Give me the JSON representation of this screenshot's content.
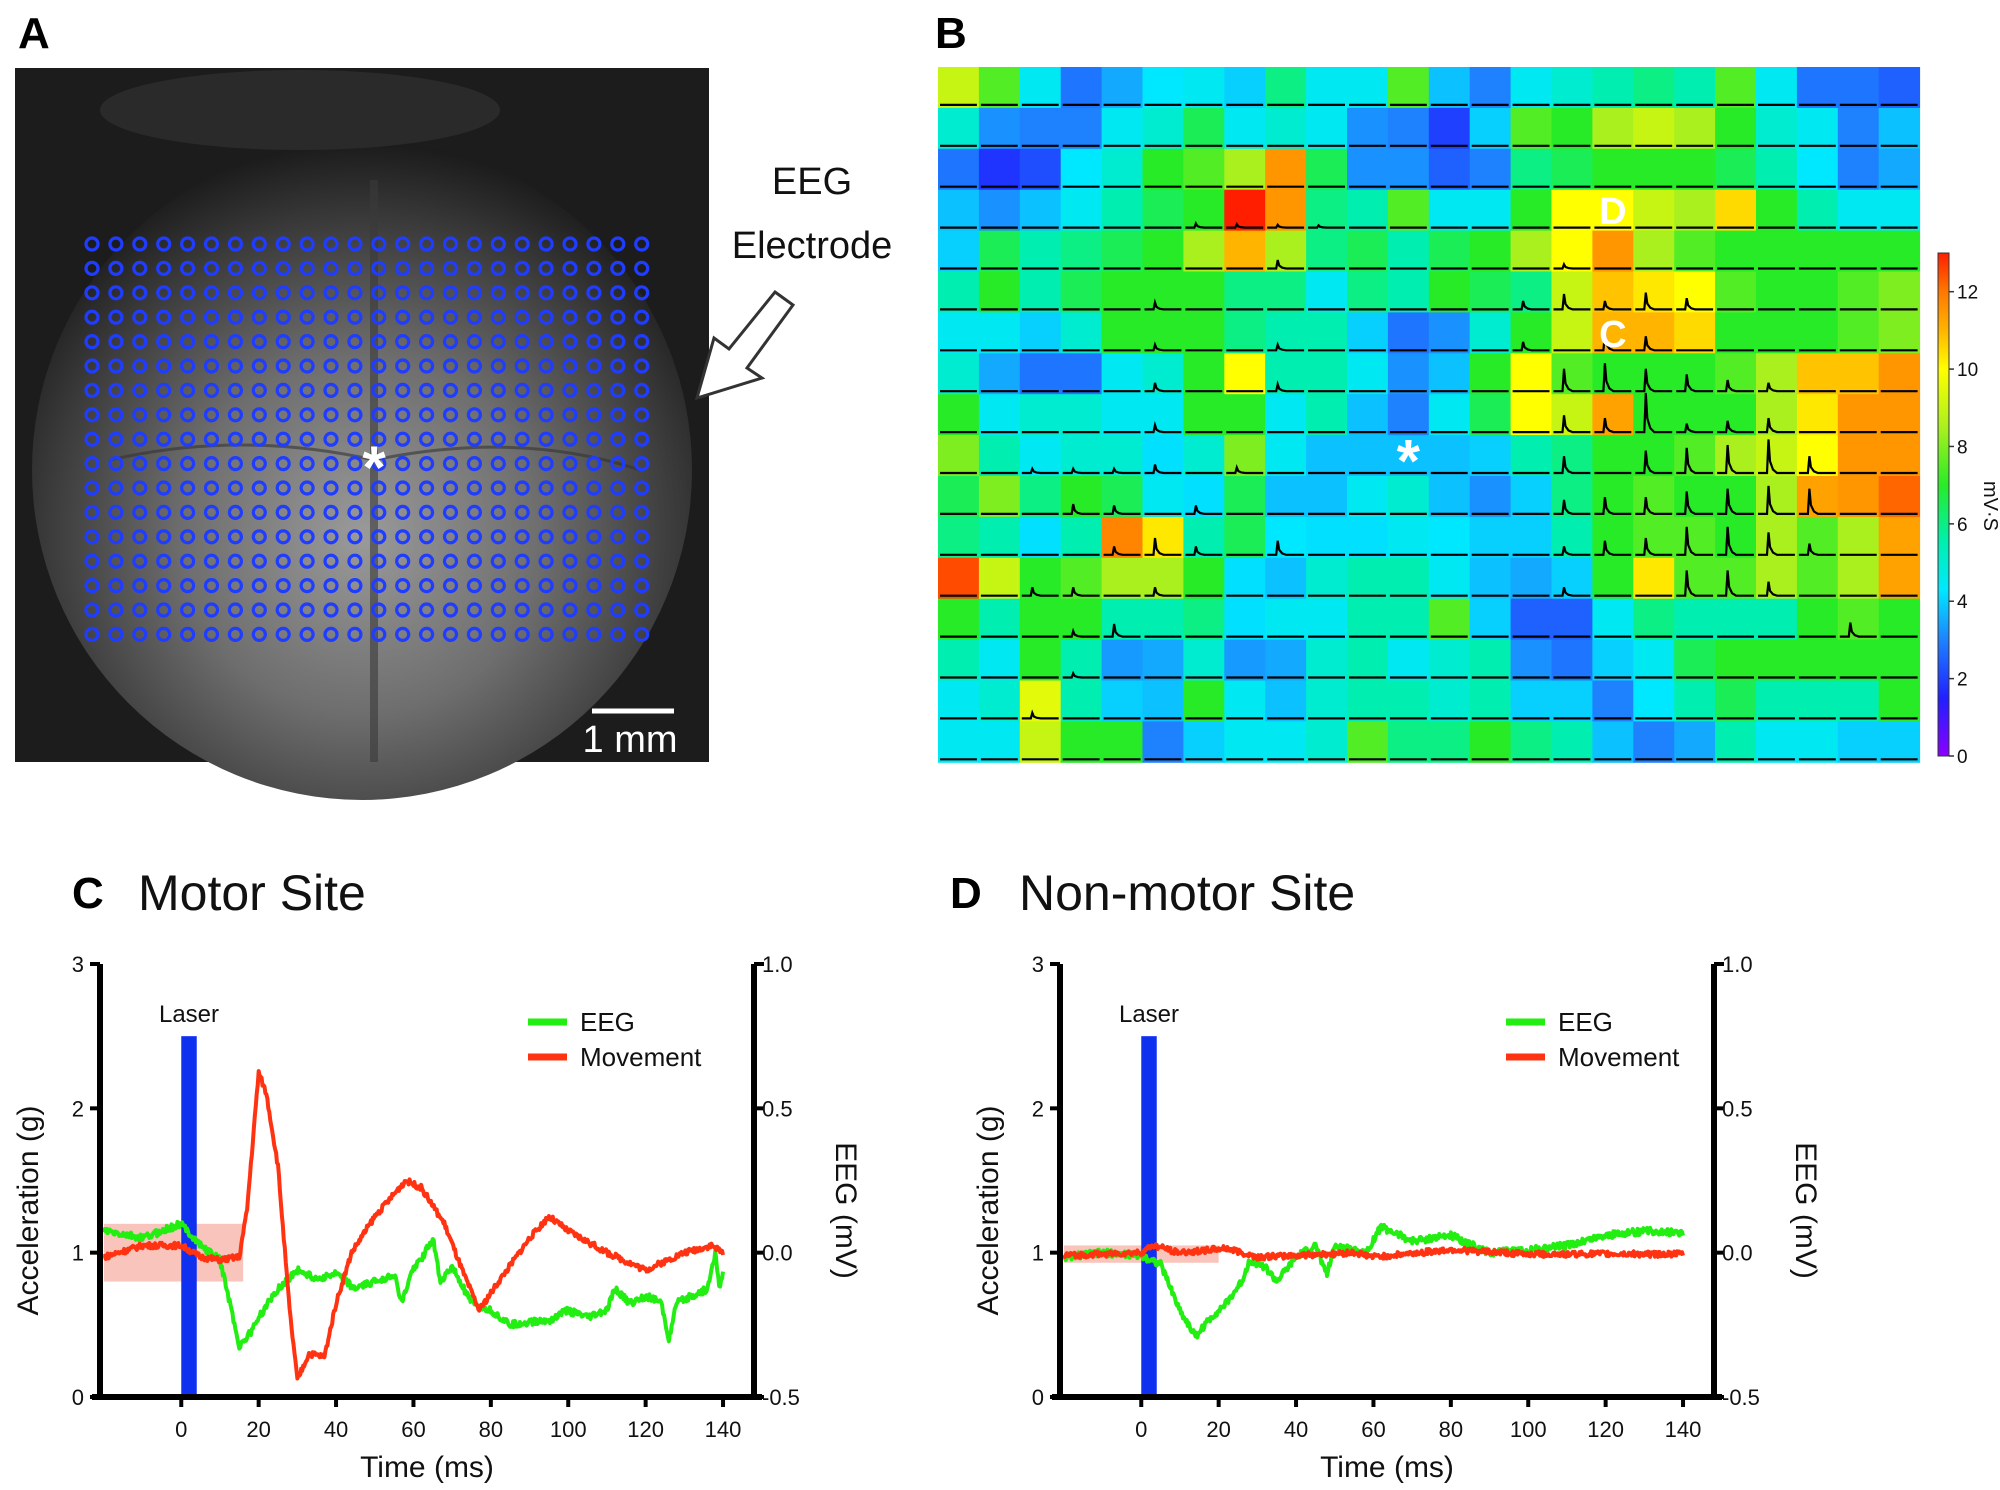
{
  "panels": {
    "a": {
      "letter": "A",
      "electrode_label_line1": "EEG",
      "electrode_label_line2": "Electrode",
      "scale_bar": "1 mm",
      "marker": "*",
      "grid_rows": 17,
      "grid_cols": 24,
      "dot_color": "#1f3cff"
    },
    "b": {
      "letter": "B",
      "marker": "*",
      "site_d": "D",
      "site_c": "C"
    },
    "c": {
      "letter": "C",
      "title": "Motor Site"
    },
    "d": {
      "letter": "D",
      "title": "Non-motor Site"
    }
  },
  "chart_data": [
    {
      "id": "B",
      "type": "heatmap",
      "colorbar": {
        "label": "mV·S",
        "range": [
          0,
          13
        ],
        "ticks": [
          "0",
          "2",
          "4",
          "6",
          "8",
          "10",
          "12"
        ]
      },
      "annotations": [
        {
          "text": "D",
          "row": 4,
          "col": 17
        },
        {
          "text": "C",
          "row": 7,
          "col": 17
        },
        {
          "text": "*",
          "row": 10,
          "col": 12
        }
      ],
      "values": [
        [
          9,
          7.5,
          4.5,
          2.8,
          3.5,
          4.3,
          4.5,
          4,
          6,
          4.5,
          4.5,
          7.5,
          3.8,
          3,
          4.5,
          5,
          5.5,
          6,
          5.5,
          7.5,
          4.5,
          2.8,
          2.8,
          2.5
        ],
        [
          5,
          3.2,
          3,
          3,
          4.5,
          5,
          6.5,
          4.5,
          5,
          4.5,
          3.2,
          3,
          2,
          4,
          7.5,
          7,
          8.5,
          9,
          8.5,
          7,
          5,
          4.5,
          3,
          3.8
        ],
        [
          2.8,
          1.8,
          2.2,
          4.3,
          5,
          7,
          7.5,
          8.5,
          11.5,
          6.5,
          3.2,
          3.2,
          2.5,
          3,
          6,
          6.5,
          7,
          7,
          7,
          6.5,
          5.5,
          4.3,
          3,
          3.5
        ],
        [
          3.8,
          3.2,
          3.8,
          4.5,
          5.5,
          6.5,
          7,
          13,
          11.5,
          6,
          5.5,
          7.5,
          4.5,
          4.5,
          7,
          10,
          10,
          9,
          8.5,
          10.5,
          7,
          5.5,
          4.5,
          4.5
        ],
        [
          4,
          6.5,
          5.5,
          6,
          6.5,
          7,
          8.5,
          11,
          8.5,
          6,
          6.5,
          5.5,
          6.5,
          7,
          8.5,
          10,
          11.5,
          8.5,
          7.5,
          7,
          7,
          7,
          7,
          7
        ],
        [
          5.5,
          7,
          5.5,
          6.5,
          7,
          7,
          7,
          6,
          6,
          4.5,
          6,
          5.5,
          7,
          6.5,
          6,
          9,
          10.8,
          10.3,
          10,
          7.5,
          7,
          7,
          7.5,
          8
        ],
        [
          4.5,
          4.5,
          4,
          5,
          7,
          7,
          7,
          6,
          5.5,
          5.5,
          4,
          2.8,
          3.2,
          5,
          7,
          9,
          11,
          11,
          10.5,
          7,
          7,
          7,
          7.5,
          8
        ],
        [
          5,
          3.5,
          2.8,
          2.8,
          4.5,
          5,
          7,
          10,
          5.5,
          5.5,
          4.5,
          3.2,
          3.8,
          7,
          10,
          7.5,
          7,
          7,
          7,
          7.5,
          8.5,
          10.8,
          10.8,
          11.5
        ],
        [
          7,
          4.5,
          5,
          5,
          4.5,
          4.5,
          7,
          7,
          4.5,
          5.5,
          3.8,
          3,
          4.5,
          6.5,
          10,
          9,
          11.3,
          7,
          7,
          7,
          8.5,
          10.3,
          11.5,
          11.5
        ],
        [
          8,
          5.5,
          4.5,
          5,
          5,
          4.2,
          5,
          8,
          4.5,
          3.8,
          3.8,
          3.8,
          3.8,
          4,
          5.5,
          6,
          7,
          7,
          7.5,
          8.5,
          9,
          10,
          11.5,
          11.5
        ],
        [
          6.5,
          8,
          6,
          7,
          6.5,
          4.5,
          4.2,
          6.5,
          3.8,
          3.8,
          4.5,
          5,
          3.8,
          3.2,
          4,
          6,
          7,
          7.5,
          7,
          7,
          8.5,
          11.3,
          11.5,
          12.2
        ],
        [
          6,
          5.5,
          4.2,
          5.5,
          11.8,
          10.3,
          5.5,
          6.5,
          4.3,
          4.2,
          4.2,
          4.5,
          4.3,
          4,
          4,
          5.5,
          7,
          7.5,
          7.5,
          7,
          8.5,
          7.5,
          8.5,
          11.3
        ],
        [
          12.5,
          9,
          7,
          7.5,
          8.5,
          8.5,
          7,
          4.2,
          3.8,
          5,
          5.5,
          5.5,
          4.5,
          3.8,
          3.5,
          4,
          7,
          10.3,
          7.5,
          7.5,
          8.5,
          7.5,
          8.5,
          11.3
        ],
        [
          7,
          5.5,
          7,
          7,
          5.5,
          5.5,
          6,
          4.2,
          4.5,
          4.5,
          5.5,
          5.5,
          7.5,
          4,
          2.5,
          2.5,
          4.5,
          6,
          5.5,
          5.5,
          5.5,
          7,
          7.5,
          7
        ],
        [
          5.5,
          4.5,
          7,
          5.5,
          3.3,
          3.5,
          5,
          3.3,
          3.5,
          5,
          5.5,
          4.5,
          5,
          5.5,
          3.2,
          2.8,
          4,
          4.5,
          6.5,
          7,
          7,
          7,
          7,
          7
        ],
        [
          4.5,
          5,
          9.5,
          5.5,
          4,
          3.8,
          7,
          4.5,
          3.8,
          5,
          5.5,
          5.5,
          5,
          5.5,
          4,
          4,
          3,
          4.3,
          5.5,
          6.5,
          5.5,
          5.5,
          5.5,
          7
        ],
        [
          4.5,
          4.5,
          9,
          7,
          7,
          3,
          4,
          4.5,
          4.5,
          5,
          7.5,
          6,
          6,
          7,
          6,
          5.5,
          3.8,
          3,
          3.5,
          5.5,
          4.5,
          4.5,
          4,
          4
        ]
      ],
      "trace_spikes": [
        [
          4,
          7,
          0.15
        ],
        [
          4,
          8,
          0.12
        ],
        [
          4,
          9,
          0.1
        ],
        [
          4,
          10,
          0.08
        ],
        [
          5,
          9,
          0.3
        ],
        [
          5,
          16,
          0.15
        ],
        [
          6,
          6,
          0.25
        ],
        [
          6,
          15,
          0.3
        ],
        [
          6,
          16,
          0.55
        ],
        [
          6,
          17,
          0.3
        ],
        [
          6,
          18,
          0.6
        ],
        [
          6,
          19,
          0.4
        ],
        [
          7,
          6,
          0.2
        ],
        [
          7,
          9,
          0.2
        ],
        [
          7,
          15,
          0.3
        ],
        [
          7,
          17,
          0.6
        ],
        [
          7,
          18,
          0.5
        ],
        [
          8,
          6,
          0.3
        ],
        [
          8,
          9,
          0.25
        ],
        [
          8,
          16,
          0.8
        ],
        [
          8,
          17,
          1.0
        ],
        [
          8,
          18,
          0.8
        ],
        [
          8,
          19,
          0.6
        ],
        [
          8,
          20,
          0.4
        ],
        [
          8,
          21,
          0.3
        ],
        [
          9,
          6,
          0.25
        ],
        [
          9,
          16,
          0.6
        ],
        [
          9,
          17,
          0.5
        ],
        [
          9,
          18,
          1.4
        ],
        [
          9,
          19,
          0.3
        ],
        [
          9,
          20,
          0.4
        ],
        [
          9,
          21,
          0.5
        ],
        [
          10,
          3,
          0.15
        ],
        [
          10,
          4,
          0.15
        ],
        [
          10,
          5,
          0.15
        ],
        [
          10,
          6,
          0.3
        ],
        [
          10,
          8,
          0.2
        ],
        [
          10,
          16,
          0.6
        ],
        [
          10,
          18,
          0.8
        ],
        [
          10,
          19,
          0.9
        ],
        [
          10,
          20,
          1.0
        ],
        [
          10,
          21,
          1.2
        ],
        [
          10,
          22,
          0.6
        ],
        [
          11,
          4,
          0.35
        ],
        [
          11,
          5,
          0.3
        ],
        [
          11,
          7,
          0.3
        ],
        [
          11,
          16,
          0.5
        ],
        [
          11,
          17,
          0.6
        ],
        [
          11,
          18,
          0.6
        ],
        [
          11,
          19,
          0.8
        ],
        [
          11,
          20,
          0.9
        ],
        [
          11,
          21,
          1.0
        ],
        [
          11,
          22,
          0.9
        ],
        [
          12,
          5,
          0.3
        ],
        [
          12,
          6,
          0.6
        ],
        [
          12,
          7,
          0.3
        ],
        [
          12,
          9,
          0.5
        ],
        [
          12,
          16,
          0.3
        ],
        [
          12,
          17,
          0.5
        ],
        [
          12,
          18,
          0.6
        ],
        [
          12,
          19,
          1.0
        ],
        [
          12,
          20,
          1.0
        ],
        [
          12,
          21,
          0.8
        ],
        [
          12,
          22,
          0.4
        ],
        [
          13,
          3,
          0.3
        ],
        [
          13,
          4,
          0.3
        ],
        [
          13,
          6,
          0.3
        ],
        [
          13,
          16,
          0.3
        ],
        [
          13,
          19,
          0.9
        ],
        [
          13,
          20,
          0.9
        ],
        [
          13,
          21,
          0.5
        ],
        [
          14,
          4,
          0.2
        ],
        [
          14,
          5,
          0.45
        ],
        [
          14,
          23,
          0.5
        ],
        [
          15,
          4,
          0.15
        ],
        [
          16,
          3,
          0.2
        ]
      ]
    },
    {
      "id": "C",
      "type": "line",
      "title": "Motor Site",
      "xlabel": "Time (ms)",
      "ylabel": "Acceleration (g)",
      "y2label": "EEG (mV)",
      "xlim": [
        -21,
        148
      ],
      "ylim": [
        0,
        3
      ],
      "y2lim": [
        -0.5,
        1.0
      ],
      "xticks": [
        "0",
        "20",
        "40",
        "60",
        "80",
        "100",
        "120",
        "140"
      ],
      "yticks": [
        "0",
        "1",
        "2",
        "3"
      ],
      "y2ticks": [
        "-0.5",
        "0.0",
        "0.5",
        "1.0"
      ],
      "laser": {
        "label": "Laser",
        "start": 0,
        "end": 4,
        "height": 2.5,
        "color": "#1030f0"
      },
      "baseline_band": {
        "x": [
          -20,
          16
        ],
        "y": [
          0.8,
          1.2
        ]
      },
      "legend": {
        "position": "top-right",
        "entries": [
          "EEG",
          "Movement"
        ]
      },
      "series": [
        {
          "name": "EEG",
          "axis": "right",
          "color": "#22ee11",
          "x": [
            -20,
            -10,
            -5,
            0,
            5,
            10,
            13,
            15,
            18,
            20,
            25,
            30,
            35,
            40,
            45,
            50,
            55,
            57,
            60,
            62,
            65,
            67,
            70,
            75,
            80,
            85,
            90,
            95,
            100,
            105,
            110,
            112,
            116,
            120,
            124,
            126,
            128,
            132,
            136,
            138,
            139,
            140
          ],
          "y": [
            0.075,
            0.05,
            0.075,
            0.1,
            0.025,
            -0.025,
            -0.2,
            -0.325,
            -0.275,
            -0.225,
            -0.125,
            -0.06,
            -0.09,
            -0.075,
            -0.125,
            -0.1,
            -0.075,
            -0.175,
            -0.05,
            -0.025,
            0.05,
            -0.1,
            -0.05,
            -0.175,
            -0.2,
            -0.25,
            -0.24,
            -0.235,
            -0.2,
            -0.225,
            -0.2,
            -0.125,
            -0.175,
            -0.15,
            -0.175,
            -0.3,
            -0.175,
            -0.15,
            -0.125,
            0.0,
            -0.125,
            -0.075
          ]
        },
        {
          "name": "Movement",
          "axis": "left",
          "color": "#ff3311",
          "x": [
            -20,
            -10,
            0,
            5,
            10,
            15,
            17,
            20,
            22,
            25,
            28,
            30,
            33,
            37,
            40,
            44,
            50,
            58,
            62,
            68,
            73,
            77,
            82,
            90,
            95,
            100,
            110,
            120,
            130,
            137,
            140
          ],
          "y": [
            0.97,
            1.05,
            1.05,
            0.97,
            0.95,
            0.97,
            1.3,
            2.25,
            2.1,
            1.6,
            0.6,
            0.12,
            0.3,
            0.28,
            0.65,
            1.0,
            1.25,
            1.5,
            1.45,
            1.2,
            0.85,
            0.6,
            0.8,
            1.1,
            1.25,
            1.15,
            1.0,
            0.88,
            1.0,
            1.05,
            1.0
          ]
        }
      ]
    },
    {
      "id": "D",
      "type": "line",
      "title": "Non-motor Site",
      "xlabel": "Time (ms)",
      "ylabel": "Acceleration (g)",
      "y2label": "EEG (mV)",
      "xlim": [
        -21,
        148
      ],
      "ylim": [
        0,
        3
      ],
      "y2lim": [
        -0.5,
        1.0
      ],
      "xticks": [
        "0",
        "20",
        "40",
        "60",
        "80",
        "100",
        "120",
        "140"
      ],
      "yticks": [
        "0",
        "1",
        "2",
        "3"
      ],
      "y2ticks": [
        "-0.5",
        "0.0",
        "0.5",
        "1.0"
      ],
      "laser": {
        "label": "Laser",
        "start": 0,
        "end": 4,
        "height": 2.5,
        "color": "#1030f0"
      },
      "baseline_band": {
        "x": [
          -20,
          20
        ],
        "y": [
          0.93,
          1.05
        ]
      },
      "legend": {
        "position": "top-right",
        "entries": [
          "EEG",
          "Movement"
        ]
      },
      "series": [
        {
          "name": "EEG",
          "axis": "right",
          "color": "#22ee11",
          "x": [
            -20,
            -10,
            0,
            5,
            10,
            14,
            18,
            22,
            26,
            28,
            32,
            35,
            38,
            40,
            45,
            48,
            50,
            55,
            58,
            62,
            70,
            80,
            90,
            100,
            110,
            120,
            130,
            140
          ],
          "y": [
            -0.015,
            0,
            -0.01,
            -0.04,
            -0.2,
            -0.29,
            -0.225,
            -0.175,
            -0.1,
            -0.025,
            -0.05,
            -0.1,
            -0.05,
            -0.015,
            0.025,
            -0.075,
            0.025,
            0.01,
            0,
            0.09,
            0.04,
            0.06,
            0,
            0.01,
            0.025,
            0.06,
            0.075,
            0.07
          ]
        },
        {
          "name": "Movement",
          "axis": "left",
          "color": "#ff3311",
          "x": [
            -20,
            0,
            3,
            10,
            22,
            30,
            40,
            55,
            60,
            80,
            100,
            140
          ],
          "y": [
            0.98,
            1.0,
            1.05,
            1.0,
            1.03,
            0.97,
            0.98,
            1.0,
            0.97,
            1.02,
            0.99,
            0.99
          ]
        }
      ]
    }
  ]
}
